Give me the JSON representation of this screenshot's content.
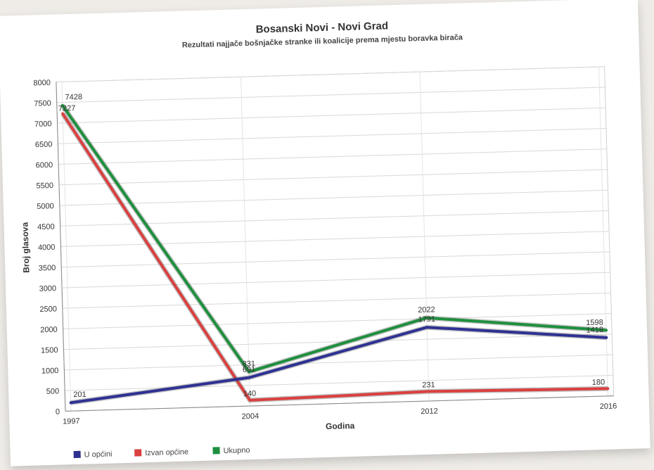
{
  "chart_data": {
    "type": "line",
    "title": "Bosanski Novi - Novi Grad",
    "subtitle": "Rezultati najjače bošnjačke stranke ili koalicije prema mjestu boravka birača",
    "xlabel": "Godina",
    "ylabel": "Broj glasova",
    "categories": [
      "1997",
      "2004",
      "2012",
      "2016"
    ],
    "ylim": [
      0,
      8000
    ],
    "yticks": [
      0,
      500,
      1000,
      1500,
      2000,
      2500,
      3000,
      3500,
      4000,
      4500,
      5000,
      5500,
      6000,
      6500,
      7000,
      7500,
      8000
    ],
    "grid": true,
    "legend_position": "bottom-left",
    "series": [
      {
        "name": "U općini",
        "color": "#2e3192",
        "values": [
          201,
          691,
          1791,
          1418
        ],
        "labels": [
          "201",
          "691",
          "1791",
          "1418"
        ]
      },
      {
        "name": "Izvan općine",
        "color": "#d9403f",
        "values": [
          7227,
          140,
          231,
          180
        ],
        "labels": [
          "7227",
          "140",
          "231",
          "180"
        ]
      },
      {
        "name": "Ukupno",
        "color": "#1e8f3e",
        "values": [
          7428,
          831,
          2022,
          1598
        ],
        "labels": [
          "7428",
          "831",
          "2022",
          "1598"
        ]
      }
    ]
  }
}
